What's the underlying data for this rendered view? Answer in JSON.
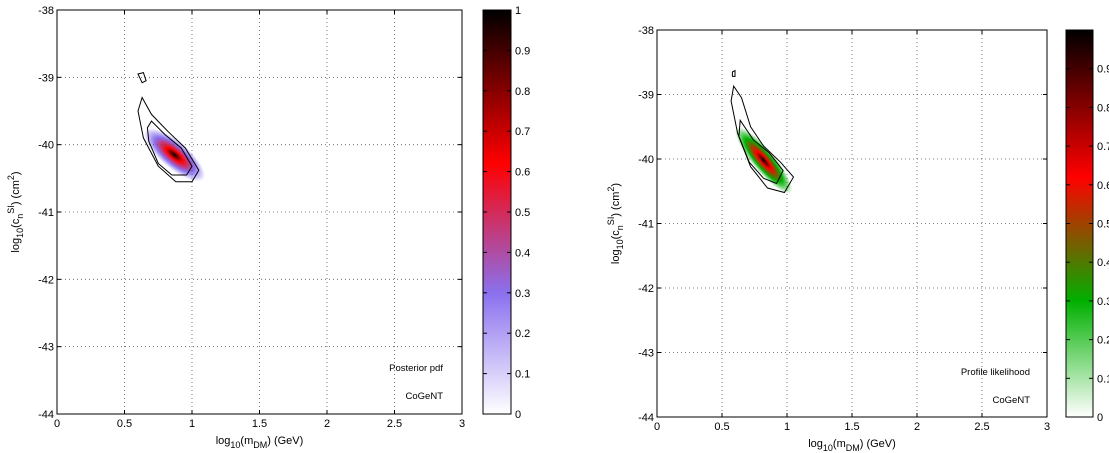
{
  "chart_data": [
    {
      "type": "heatmap",
      "title": "",
      "xlabel_parts": [
        "log",
        "10",
        "(m",
        "DM",
        ") (GeV)"
      ],
      "ylabel_parts": [
        "log",
        "10",
        "(c",
        "n",
        "SI",
        ") (cm",
        "2",
        ")"
      ],
      "xlim": [
        0,
        3
      ],
      "ylim": [
        -44,
        -38
      ],
      "xticks": [
        "0",
        "0.5",
        "1",
        "1.5",
        "2",
        "2.5",
        "3"
      ],
      "yticks": [
        "-44",
        "-43",
        "-42",
        "-41",
        "-40",
        "-39",
        "-38"
      ],
      "grid": true,
      "annotations": [
        "Posterior pdf",
        "CoGeNT"
      ],
      "colorbar": {
        "range": [
          0,
          1
        ],
        "ticks": [
          "0",
          "0.1",
          "0.2",
          "0.3",
          "0.4",
          "0.5",
          "0.6",
          "0.7",
          "0.8",
          "0.9",
          "1"
        ],
        "colors": [
          "#ffffff",
          "#8a70ee",
          "#ff0000",
          "#000000"
        ]
      },
      "peak": {
        "x": 0.87,
        "y": -40.15
      },
      "contours": [
        {
          "level": "outer",
          "points": [
            [
              0.63,
              -39.3
            ],
            [
              0.7,
              -39.55
            ],
            [
              0.82,
              -39.8
            ],
            [
              0.95,
              -40.05
            ],
            [
              1.05,
              -40.38
            ],
            [
              1.0,
              -40.55
            ],
            [
              0.88,
              -40.55
            ],
            [
              0.75,
              -40.32
            ],
            [
              0.64,
              -39.9
            ],
            [
              0.6,
              -39.5
            ]
          ]
        },
        {
          "level": "inner",
          "points": [
            [
              0.7,
              -39.65
            ],
            [
              0.8,
              -39.85
            ],
            [
              0.92,
              -40.05
            ],
            [
              1.0,
              -40.32
            ],
            [
              0.96,
              -40.45
            ],
            [
              0.85,
              -40.45
            ],
            [
              0.75,
              -40.28
            ],
            [
              0.68,
              -39.95
            ],
            [
              0.67,
              -39.75
            ]
          ]
        },
        {
          "level": "island",
          "points": [
            [
              0.6,
              -38.95
            ],
            [
              0.64,
              -38.93
            ],
            [
              0.66,
              -39.05
            ],
            [
              0.63,
              -39.08
            ]
          ]
        }
      ]
    },
    {
      "type": "heatmap",
      "title": "",
      "xlabel_parts": [
        "log",
        "10",
        "(m",
        "DM",
        ") (GeV)"
      ],
      "ylabel_parts": [
        "log",
        "10",
        "(c",
        "n",
        "SI",
        ") (cm",
        "2",
        ")"
      ],
      "xlim": [
        0,
        3
      ],
      "ylim": [
        -44,
        -38
      ],
      "xticks": [
        "0",
        "0.5",
        "1",
        "1.5",
        "2",
        "2.5",
        "3"
      ],
      "yticks": [
        "-44",
        "-43",
        "-42",
        "-41",
        "-40",
        "-39",
        "-38"
      ],
      "grid": true,
      "annotations": [
        "Profile likelihood",
        "CoGeNT"
      ],
      "colorbar": {
        "range": [
          0,
          1
        ],
        "ticks": [
          "0",
          "0.1",
          "0.2",
          "0.3",
          "0.4",
          "0.5",
          "0.6",
          "0.7",
          "0.8",
          "0.9"
        ],
        "colors": [
          "#ffffff",
          "#00b000",
          "#ff0000",
          "#000000"
        ]
      },
      "peak": {
        "x": 0.82,
        "y": -40.02
      },
      "contours": [
        {
          "level": "outer",
          "points": [
            [
              0.59,
              -38.87
            ],
            [
              0.65,
              -39.05
            ],
            [
              0.72,
              -39.5
            ],
            [
              0.82,
              -39.8
            ],
            [
              0.95,
              -40.05
            ],
            [
              1.05,
              -40.28
            ],
            [
              0.98,
              -40.52
            ],
            [
              0.85,
              -40.45
            ],
            [
              0.72,
              -40.12
            ],
            [
              0.62,
              -39.6
            ],
            [
              0.57,
              -39.1
            ]
          ]
        },
        {
          "level": "inner",
          "points": [
            [
              0.64,
              -39.4
            ],
            [
              0.74,
              -39.7
            ],
            [
              0.86,
              -39.9
            ],
            [
              0.97,
              -40.18
            ],
            [
              0.92,
              -40.38
            ],
            [
              0.82,
              -40.3
            ],
            [
              0.71,
              -40.05
            ],
            [
              0.63,
              -39.65
            ]
          ]
        },
        {
          "level": "island",
          "points": [
            [
              0.58,
              -38.65
            ],
            [
              0.6,
              -38.63
            ],
            [
              0.6,
              -38.72
            ],
            [
              0.58,
              -38.72
            ]
          ]
        }
      ]
    }
  ]
}
